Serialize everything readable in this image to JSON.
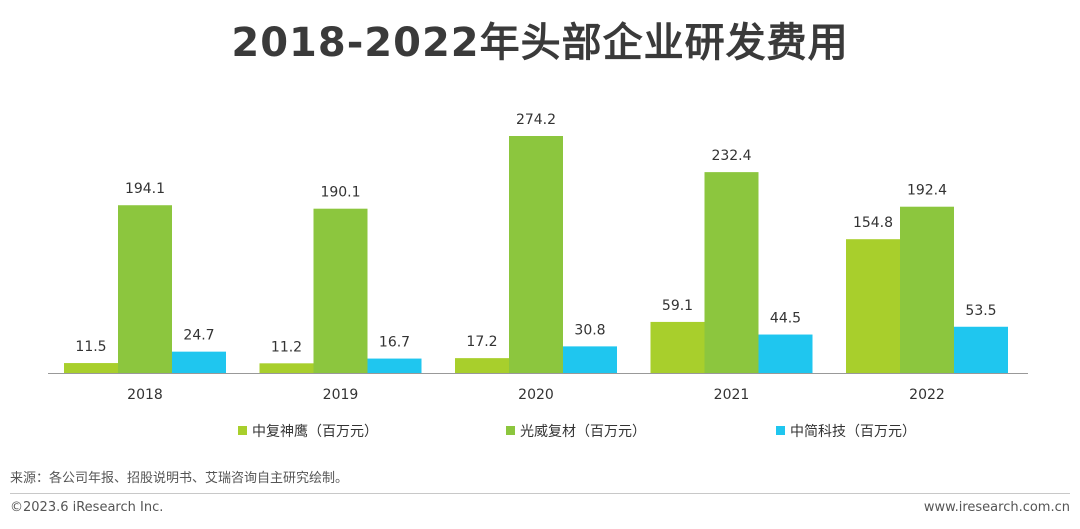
{
  "title": "2018-2022年头部企业研发费用",
  "chart_data": {
    "type": "bar",
    "categories": [
      "2018",
      "2019",
      "2020",
      "2021",
      "2022"
    ],
    "series": [
      {
        "name": "中复神鹰（百万元）",
        "color": "#a8cf2c",
        "values": [
          11.5,
          11.2,
          17.2,
          59.1,
          154.8
        ]
      },
      {
        "name": "光威复材（百万元）",
        "color": "#8cc63e",
        "values": [
          194.1,
          190.1,
          274.2,
          232.4,
          192.4
        ]
      },
      {
        "name": "中简科技（百万元）",
        "color": "#1fc6ef",
        "values": [
          24.7,
          16.7,
          30.8,
          44.5,
          53.5
        ]
      }
    ],
    "ylim": [
      0,
      274.2
    ],
    "grid": false,
    "legend": "bottom",
    "data_labels": true
  },
  "footer": {
    "source": "来源：各公司年报、招股说明书、艾瑞咨询自主研究绘制。",
    "copyright": "©2023.6 iResearch Inc.",
    "website": "www.iresearch.com.cn"
  }
}
